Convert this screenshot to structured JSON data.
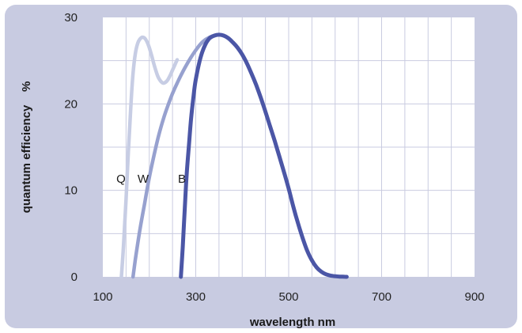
{
  "colors": {
    "frame": "#c8cbe1",
    "plot_bg": "#ffffff",
    "grid": "#c9cbe0",
    "Q": "#c7cde4",
    "W": "#97a1cf",
    "B": "#4b56a6"
  },
  "chart_data": {
    "type": "line",
    "title": "",
    "xlabel": "wavelength  nm",
    "ylabel": "quantum efficiency    %",
    "xlim": [
      100,
      900
    ],
    "ylim": [
      0,
      30
    ],
    "x_ticks": [
      100,
      300,
      500,
      700,
      900
    ],
    "y_ticks": [
      0,
      10,
      20,
      30
    ],
    "x_tick_labels": [
      "100",
      "300",
      "500",
      "700",
      "900"
    ],
    "y_tick_labels": [
      "0",
      "10",
      "20",
      "30"
    ],
    "grid": true,
    "legend": "none",
    "series": [
      {
        "name": "Q",
        "x": [
          140,
          145,
          150,
          155,
          160,
          165,
          170,
          175,
          180,
          185,
          190,
          195,
          200,
          205,
          210,
          215,
          220,
          225,
          230,
          235,
          240,
          245,
          250,
          255,
          260
        ],
        "y": [
          0,
          4,
          9,
          14.5,
          19.5,
          23.5,
          25.8,
          27,
          27.5,
          27.7,
          27.6,
          27.2,
          26.5,
          25.6,
          24.6,
          23.7,
          23,
          22.6,
          22.4,
          22.5,
          22.8,
          23.3,
          23.9,
          24.5,
          25.1
        ]
      },
      {
        "name": "W",
        "x": [
          165,
          170,
          180,
          190,
          200,
          210,
          220,
          230,
          240,
          250,
          260,
          270,
          280,
          290,
          300,
          310,
          320,
          330,
          340,
          350
        ],
        "y": [
          0,
          2,
          5.5,
          8.5,
          11.5,
          14,
          16.3,
          18.2,
          19.8,
          21.2,
          22.4,
          23.5,
          24.5,
          25.4,
          26.2,
          26.9,
          27.4,
          27.7,
          27.9,
          28
        ]
      },
      {
        "name": "B",
        "x": [
          268,
          272,
          276,
          280,
          285,
          290,
          295,
          300,
          310,
          320,
          330,
          340,
          350,
          360,
          370,
          380,
          390,
          400,
          410,
          420,
          430,
          440,
          450,
          460,
          470,
          480,
          490,
          500,
          510,
          520,
          530,
          540,
          550,
          560,
          570,
          580,
          590,
          600,
          610,
          620,
          625
        ],
        "y": [
          0,
          3.5,
          7.5,
          11.5,
          15,
          18.3,
          20.8,
          22.8,
          25.3,
          26.8,
          27.6,
          27.9,
          28,
          27.9,
          27.6,
          27.1,
          26.5,
          25.7,
          24.7,
          23.5,
          22.2,
          20.7,
          19.1,
          17.4,
          15.7,
          13.9,
          12.1,
          10.2,
          8.1,
          6.2,
          4.5,
          3,
          1.9,
          1.1,
          0.6,
          0.3,
          0.15,
          0.07,
          0.03,
          0.01,
          0
        ]
      }
    ]
  }
}
